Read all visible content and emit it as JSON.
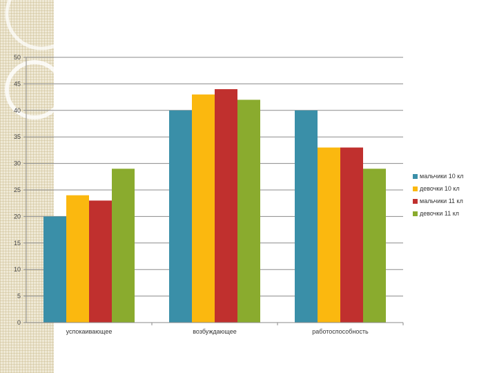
{
  "chart_data": {
    "type": "bar",
    "title": "",
    "xlabel": "",
    "ylabel": "",
    "ylim": [
      0,
      50
    ],
    "yticks": [
      0,
      5,
      10,
      15,
      20,
      25,
      30,
      35,
      40,
      45,
      50
    ],
    "categories": [
      "успокаивающее",
      "возбуждающее",
      "работоспособность"
    ],
    "series": [
      {
        "name": "мальчики 10 кл",
        "color": "#3a8fa8",
        "values": [
          20,
          40,
          40
        ]
      },
      {
        "name": "девочки 10 кл",
        "color": "#fbb80f",
        "values": [
          24,
          43,
          33
        ]
      },
      {
        "name": "мальчики 11 кл",
        "color": "#c0302e",
        "values": [
          23,
          44,
          33
        ]
      },
      {
        "name": "девочки 11 кл",
        "color": "#8aab2e",
        "values": [
          29,
          42,
          29
        ]
      }
    ],
    "grid": true,
    "legend_position": "right"
  }
}
